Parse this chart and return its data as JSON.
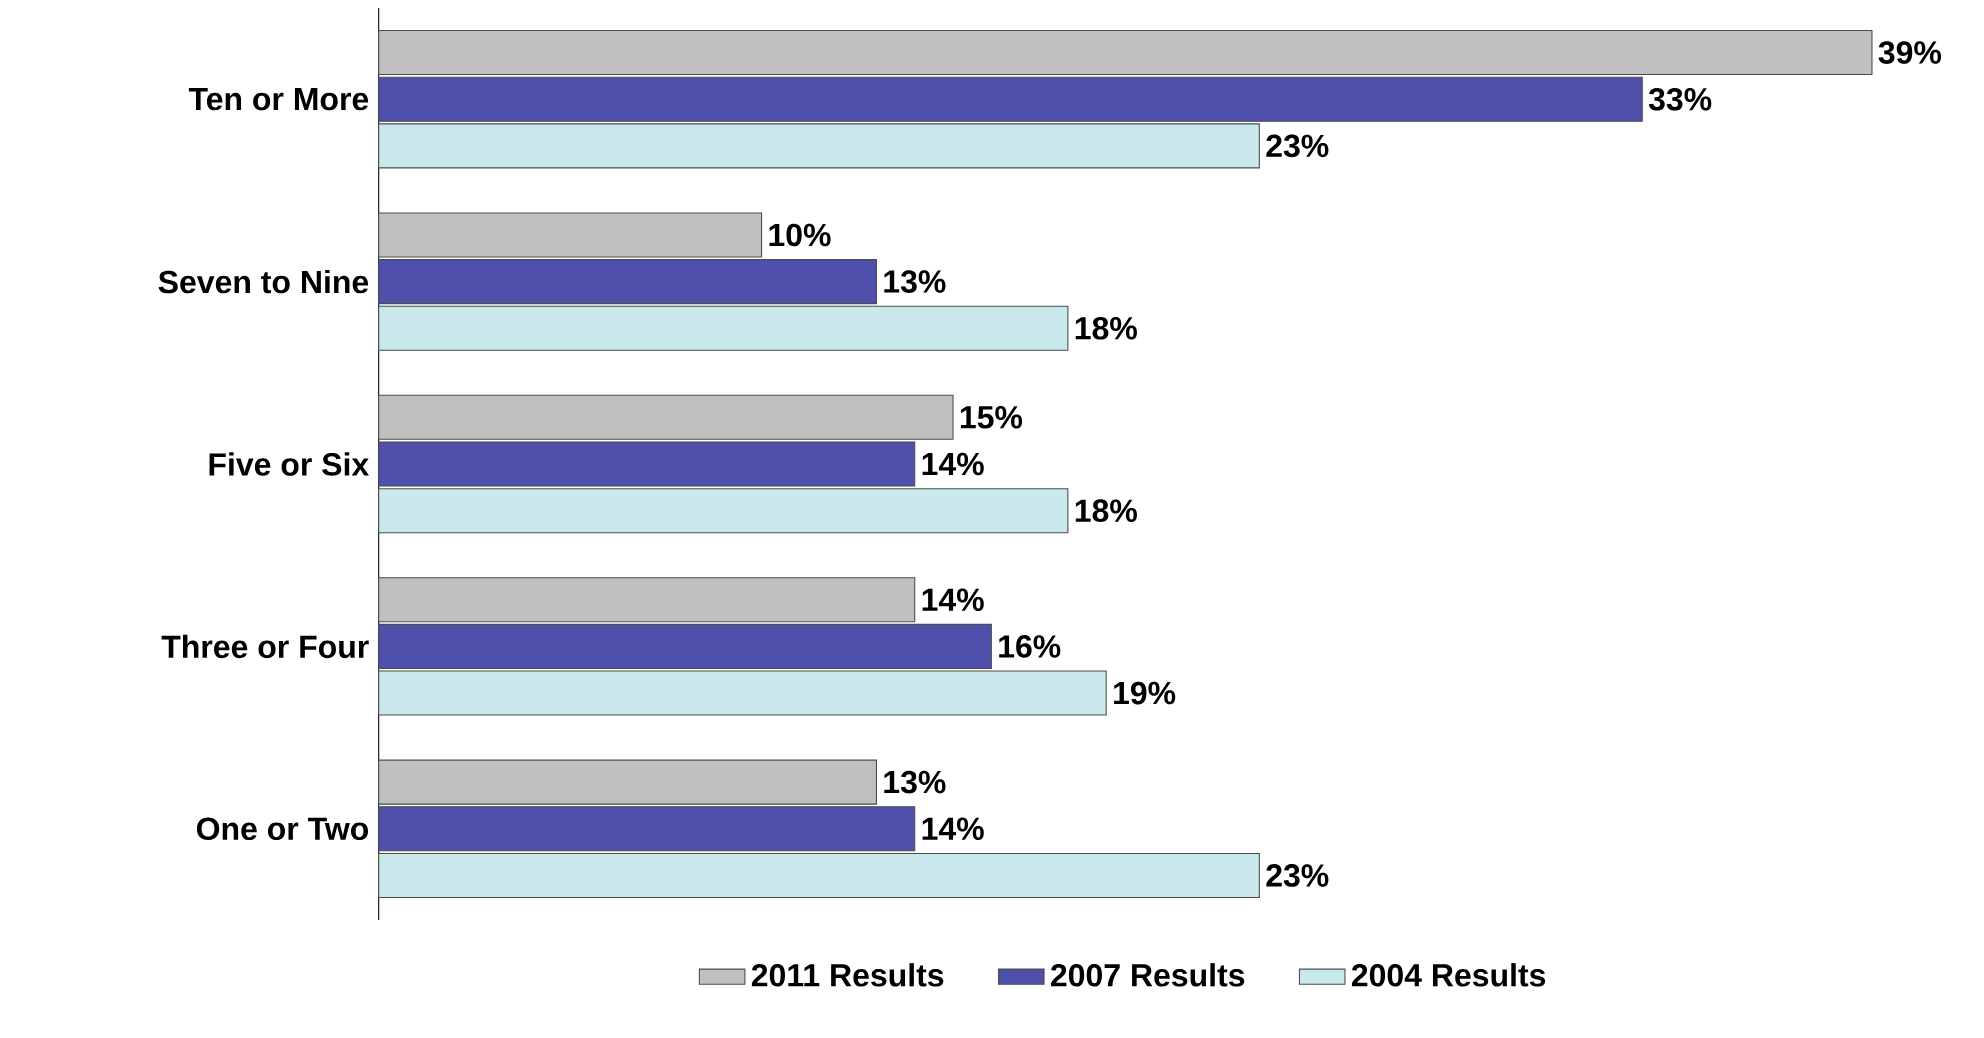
{
  "chart_data": {
    "type": "bar",
    "orientation": "horizontal",
    "categories": [
      "Ten or More",
      "Seven to Nine",
      "Five or Six",
      "Three or Four",
      "One or Two"
    ],
    "series": [
      {
        "name": "2011 Results",
        "color": "#c0c0c0",
        "values": [
          39,
          10,
          15,
          14,
          13
        ],
        "value_labels": [
          "39%",
          "10%",
          "15%",
          "14%",
          "13%"
        ]
      },
      {
        "name": "2007 Results",
        "color": "#4f4fac",
        "values": [
          33,
          13,
          14,
          16,
          14
        ],
        "value_labels": [
          "33%",
          "13%",
          "14%",
          "16%",
          "14%"
        ]
      },
      {
        "name": "2004 Results",
        "color": "#c9e8ec",
        "values": [
          23,
          18,
          18,
          19,
          23
        ],
        "value_labels": [
          "23%",
          "18%",
          "18%",
          "19%",
          "23%"
        ]
      }
    ],
    "legend": "bottom"
  }
}
